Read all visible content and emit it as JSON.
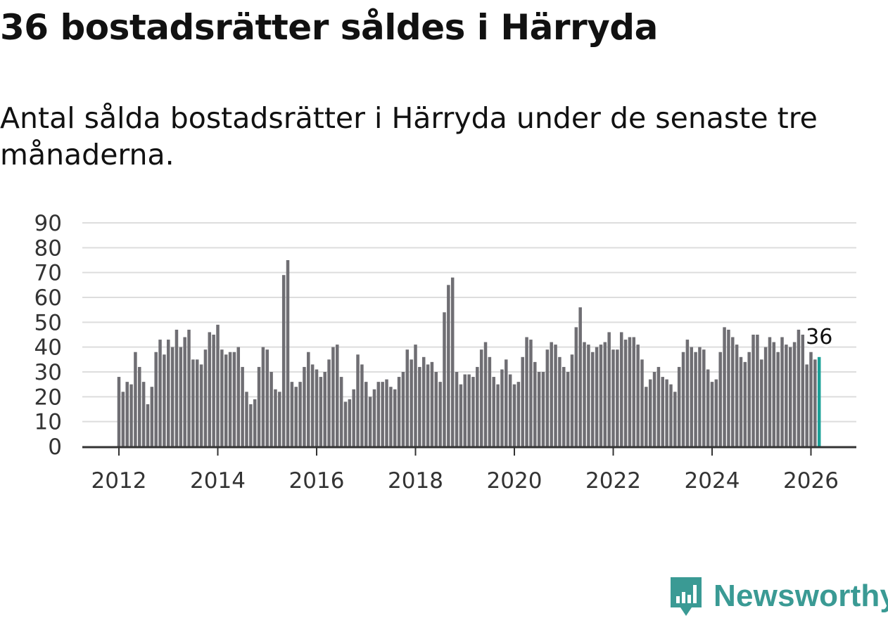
{
  "header": {
    "title": "36 bostadsrätter såldes i Härryda",
    "subtitle": "Antal sålda bostadsrätter i Härryda under de senaste tre månaderna."
  },
  "chart_data": {
    "type": "bar",
    "title": "36 bostadsrätter såldes i Härryda",
    "subtitle": "Antal sålda bostadsrätter i Härryda under de senaste tre månaderna.",
    "xlabel": "",
    "ylabel": "",
    "ylim": [
      0,
      90
    ],
    "y_ticks": [
      "0",
      "10",
      "20",
      "30",
      "40",
      "50",
      "60",
      "70",
      "80",
      "90"
    ],
    "x_ticks": [
      "2012",
      "2014",
      "2016",
      "2018",
      "2020",
      "2022",
      "2024",
      "2026"
    ],
    "start": "2012-01",
    "frequency": "monthly",
    "grid": true,
    "colors": {
      "bar": "#6f6e73",
      "highlight": "#1aa198",
      "grid": "#dddddd",
      "axis": "#333333",
      "text": "#333333"
    },
    "highlight_label": "36",
    "values": [
      28,
      22,
      26,
      25,
      38,
      32,
      26,
      17,
      24,
      38,
      43,
      37,
      43,
      40,
      47,
      40,
      44,
      47,
      35,
      35,
      33,
      39,
      46,
      45,
      49,
      39,
      37,
      38,
      38,
      40,
      32,
      22,
      17,
      19,
      32,
      40,
      39,
      30,
      23,
      22,
      69,
      75,
      26,
      24,
      26,
      32,
      38,
      33,
      31,
      28,
      30,
      35,
      40,
      41,
      28,
      18,
      19,
      23,
      37,
      33,
      26,
      20,
      23,
      26,
      26,
      27,
      24,
      23,
      28,
      30,
      39,
      35,
      41,
      32,
      36,
      33,
      34,
      30,
      26,
      54,
      65,
      68,
      30,
      25,
      29,
      29,
      28,
      32,
      39,
      42,
      36,
      28,
      25,
      31,
      35,
      29,
      25,
      26,
      36,
      44,
      43,
      34,
      30,
      30,
      39,
      42,
      41,
      36,
      32,
      30,
      37,
      48,
      56,
      42,
      41,
      38,
      40,
      41,
      42,
      46,
      39,
      39,
      46,
      43,
      44,
      44,
      41,
      35,
      24,
      27,
      30,
      32,
      28,
      27,
      25,
      22,
      32,
      38,
      43,
      40,
      38,
      40,
      39,
      31,
      26,
      27,
      38,
      48,
      47,
      44,
      41,
      36,
      34,
      38,
      45,
      45,
      35,
      40,
      44,
      42,
      38,
      44,
      41,
      40,
      42,
      47,
      45,
      33,
      38,
      35,
      36
    ]
  },
  "brand": {
    "logo_text": "Newsworthy",
    "logo_icon": "newsworthy-logo-icon",
    "color": "#3a9a94"
  }
}
